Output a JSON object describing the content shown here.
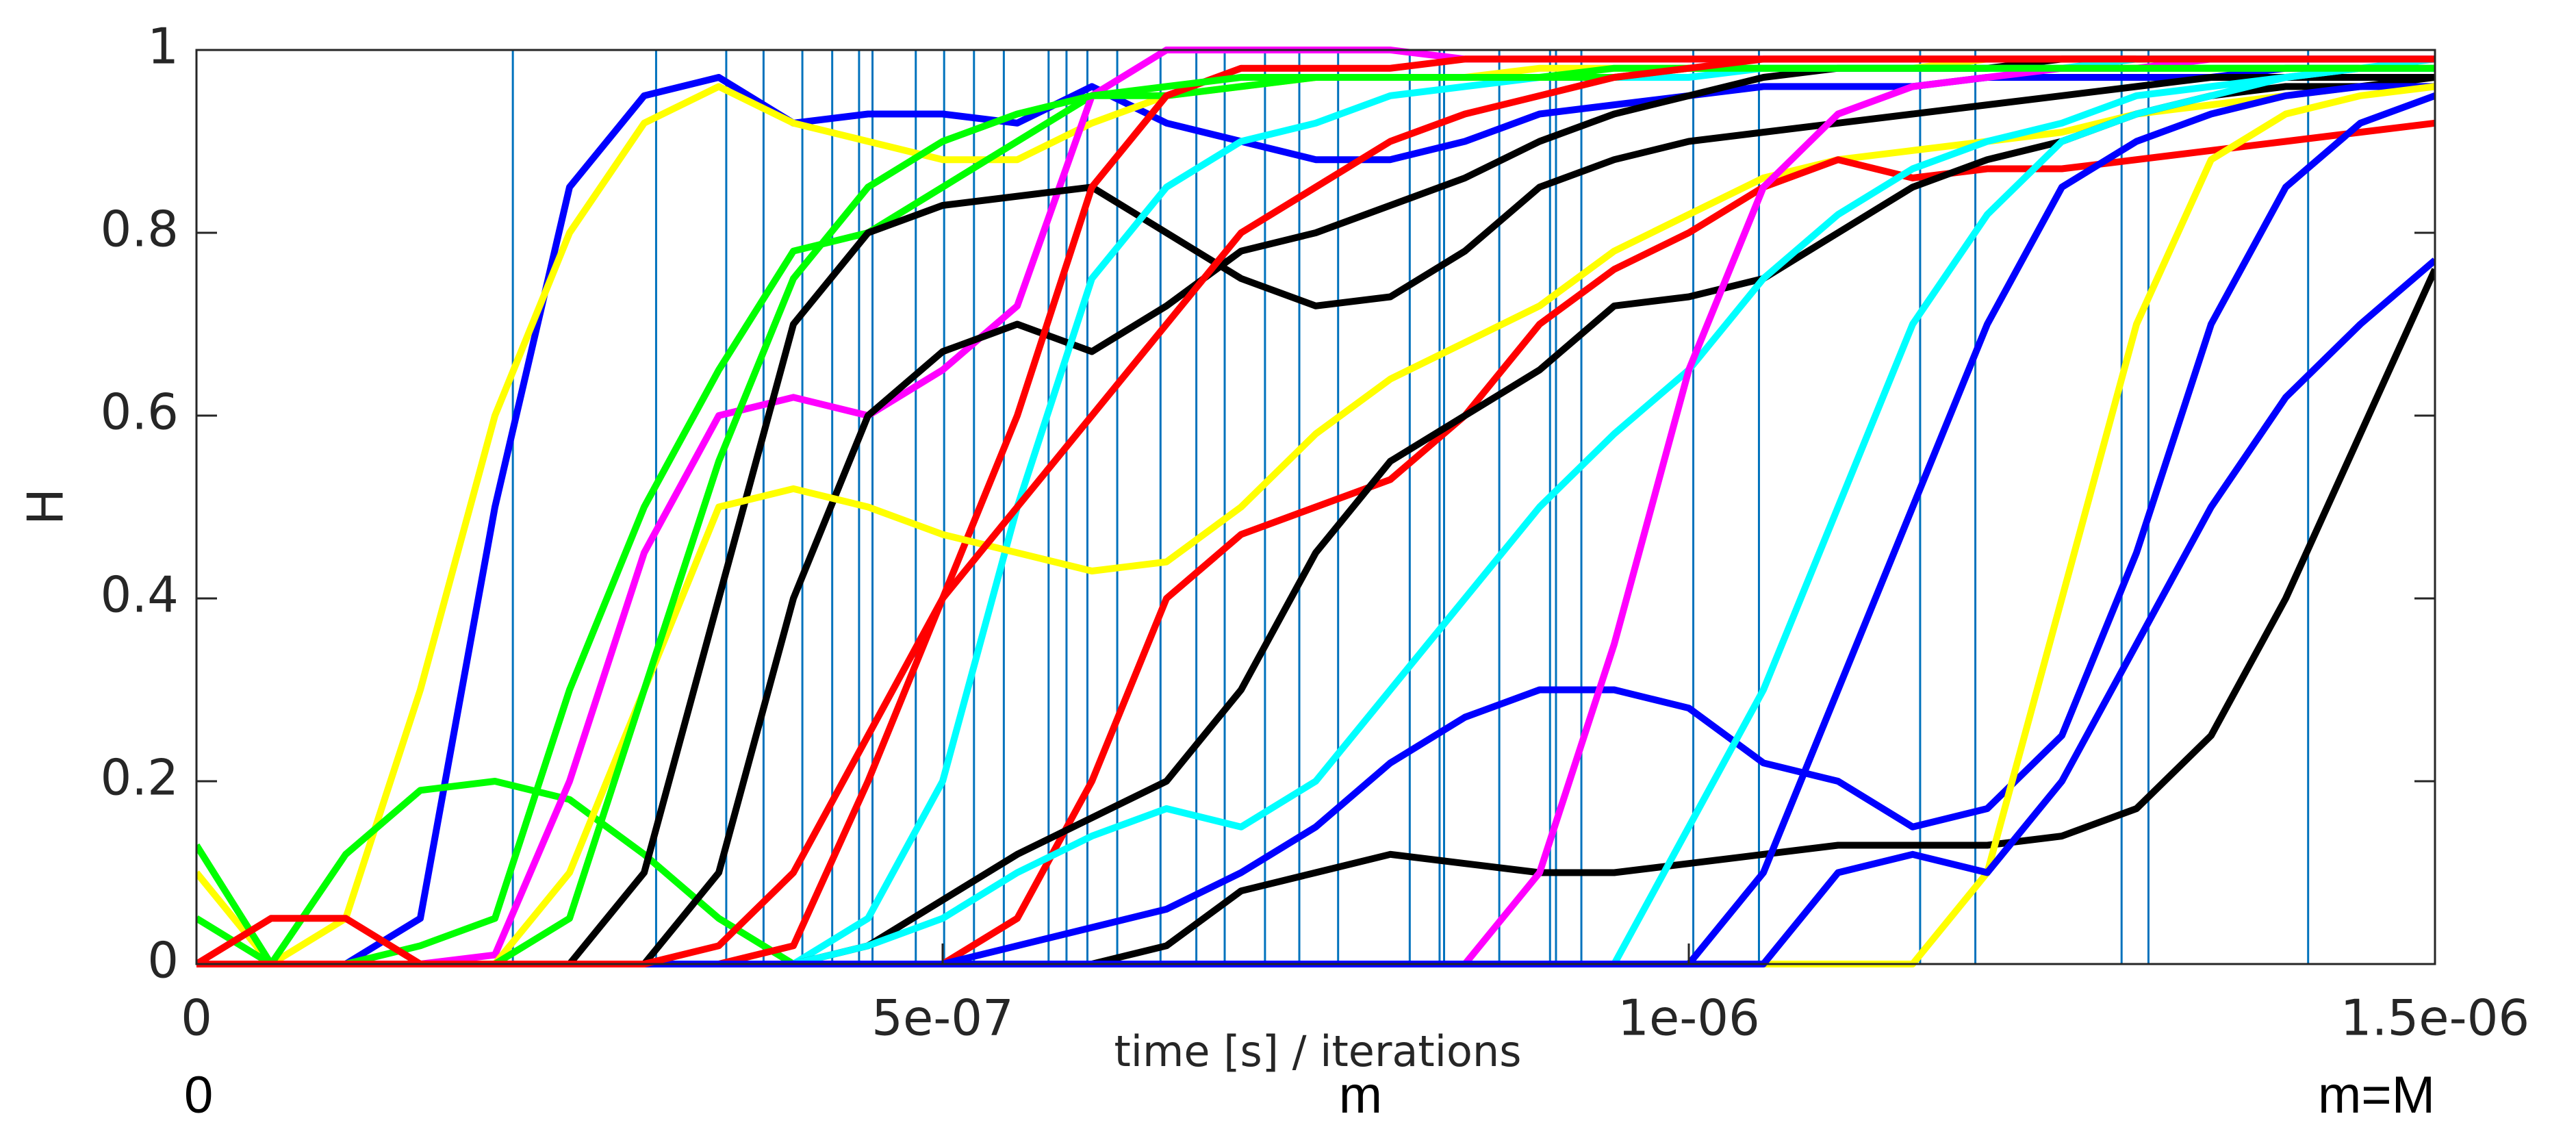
{
  "chart_data": {
    "type": "line",
    "xlabel": "time [s] / iterations",
    "ylabel": "H",
    "x": [
      0,
      5e-08,
      1e-07,
      1.5e-07,
      2e-07,
      2.5e-07,
      3e-07,
      3.5e-07,
      4e-07,
      4.5e-07,
      5e-07,
      5.5e-07,
      6e-07,
      6.5e-07,
      7e-07,
      7.5e-07,
      8e-07,
      8.5e-07,
      9e-07,
      9.5e-07,
      1e-06,
      1.05e-06,
      1.1e-06,
      1.15e-06,
      1.2e-06,
      1.25e-06,
      1.3e-06,
      1.35e-06,
      1.4e-06,
      1.45e-06,
      1.5e-06
    ],
    "xlim": [
      0,
      1.5e-06
    ],
    "xticks": [
      0,
      {
        "value": 5e-07,
        "label": "5e-07"
      },
      {
        "value": 1e-06,
        "label": "1e-06"
      },
      {
        "value": 1.5e-06,
        "label": "1.5e-06"
      }
    ],
    "x2ticks": [
      0,
      {
        "value": 7.8e-07,
        "label": "m"
      },
      {
        "value": 1.5e-06,
        "label": "m=M"
      }
    ],
    "ylim": [
      0,
      1
    ],
    "yticks": [
      0,
      0.2,
      0.4,
      0.6,
      0.8,
      1
    ],
    "vlines": [
      2.12e-07,
      3.08e-07,
      3.55e-07,
      3.8e-07,
      4.06e-07,
      4.26e-07,
      4.44e-07,
      4.53e-07,
      4.82e-07,
      5.01e-07,
      5.21e-07,
      5.41e-07,
      5.71e-07,
      5.83e-07,
      5.97e-07,
      6.17e-07,
      6.46e-07,
      6.7e-07,
      6.89e-07,
      7.16e-07,
      7.39e-07,
      7.65e-07,
      8.13e-07,
      8.33e-07,
      8.36e-07,
      8.73e-07,
      9.07e-07,
      9.11e-07,
      9.28e-07,
      1.003e-06,
      1.047e-06,
      1.155e-06,
      1.192e-06,
      1.29e-06,
      1.308e-06,
      1.415e-06
    ],
    "vline_color": "#0072bd",
    "series": [
      {
        "color": "#0000ff",
        "values": [
          0,
          0,
          0,
          0.05,
          0.5,
          0.85,
          0.95,
          0.97,
          0.92,
          0.93,
          0.93,
          0.92,
          0.96,
          0.92,
          0.9,
          0.88,
          0.88,
          0.9,
          0.93,
          0.94,
          0.95,
          0.96,
          0.96,
          0.96,
          0.97,
          0.97,
          0.97,
          0.97,
          0.98,
          0.98,
          0.98
        ]
      },
      {
        "color": "#ffff00",
        "values": [
          0.1,
          0,
          0.05,
          0.3,
          0.6,
          0.8,
          0.92,
          0.96,
          0.92,
          0.9,
          0.88,
          0.88,
          0.92,
          0.95,
          0.96,
          0.97,
          0.97,
          0.97,
          0.98,
          0.98,
          0.98,
          0.98,
          0.98,
          0.98,
          0.99,
          0.99,
          0.99,
          0.99,
          0.99,
          0.99,
          0.99
        ]
      },
      {
        "color": "#00ff00",
        "values": [
          0.13,
          0,
          0.12,
          0.19,
          0.2,
          0.18,
          0.12,
          0.05,
          0,
          null,
          null,
          null,
          null,
          null,
          null,
          null,
          null,
          null,
          null,
          null,
          null,
          null,
          null,
          null,
          null,
          null,
          null,
          null,
          null,
          null,
          null
        ]
      },
      {
        "color": "#00ff00",
        "values": [
          0.05,
          0,
          0,
          0.02,
          0.05,
          0.3,
          0.5,
          0.65,
          0.78,
          0.8,
          0.85,
          0.9,
          0.95,
          0.95,
          0.96,
          0.97,
          0.97,
          0.97,
          0.97,
          0.98,
          0.98,
          0.98,
          0.98,
          0.98,
          0.98,
          0.98,
          0.98,
          0.98,
          0.98,
          0.98,
          0.98
        ]
      },
      {
        "color": "#ff00ff",
        "values": [
          0,
          0,
          0,
          0,
          0.01,
          0.2,
          0.45,
          0.6,
          0.62,
          0.6,
          0.65,
          0.72,
          0.95,
          1,
          1,
          1,
          1,
          0.99,
          0.99,
          0.99,
          0.99,
          0.99,
          0.99,
          0.99,
          0.99,
          0.99,
          0.99,
          0.99,
          0.99,
          0.99,
          0.99
        ]
      },
      {
        "color": "#000000",
        "values": [
          0,
          0,
          0,
          0,
          0,
          0,
          0.1,
          0.4,
          0.7,
          0.8,
          0.83,
          0.84,
          0.85,
          0.8,
          0.75,
          0.72,
          0.73,
          0.78,
          0.85,
          0.88,
          0.9,
          0.91,
          0.92,
          0.93,
          0.94,
          0.95,
          0.96,
          0.97,
          0.97,
          0.97,
          0.97
        ]
      },
      {
        "color": "#000000",
        "values": [
          0,
          0,
          0,
          0,
          0,
          0,
          0,
          0.1,
          0.4,
          0.6,
          0.67,
          0.7,
          0.67,
          0.72,
          0.78,
          0.8,
          0.83,
          0.86,
          0.9,
          0.93,
          0.95,
          0.97,
          0.98,
          0.98,
          0.98,
          0.99,
          0.99,
          0.99,
          0.99,
          0.99,
          0.99
        ]
      },
      {
        "color": "#ff0000",
        "values": [
          0,
          0.05,
          0.05,
          0,
          0,
          0,
          0,
          0,
          0.02,
          0.2,
          0.4,
          0.6,
          0.85,
          0.95,
          0.98,
          0.98,
          0.98,
          0.99,
          0.99,
          0.99,
          0.99,
          0.99,
          0.99,
          0.99,
          0.99,
          0.99,
          0.99,
          0.99,
          0.99,
          0.99,
          0.99
        ]
      },
      {
        "color": "#00ffff",
        "values": [
          0,
          0,
          0,
          0,
          0,
          0,
          0,
          0,
          0,
          0.05,
          0.2,
          0.5,
          0.75,
          0.85,
          0.9,
          0.92,
          0.95,
          0.96,
          0.97,
          0.97,
          0.97,
          0.98,
          0.98,
          0.98,
          0.98,
          0.98,
          0.99,
          0.99,
          0.99,
          0.99,
          0.99
        ]
      },
      {
        "color": "#ffff00",
        "values": [
          0,
          0,
          0,
          0,
          0,
          0.1,
          0.3,
          0.5,
          0.52,
          0.5,
          0.47,
          0.45,
          0.43,
          0.44,
          0.5,
          0.58,
          0.64,
          0.68,
          0.72,
          0.78,
          0.82,
          0.86,
          0.88,
          0.89,
          0.9,
          0.91,
          0.93,
          0.94,
          0.95,
          0.96,
          0.96
        ]
      },
      {
        "color": "#ff0000",
        "values": [
          0,
          0,
          0,
          0,
          0,
          0,
          0,
          0,
          0,
          0,
          0,
          0.05,
          0.2,
          0.4,
          0.47,
          0.5,
          0.53,
          0.6,
          0.7,
          0.76,
          0.8,
          0.85,
          0.88,
          0.86,
          0.87,
          0.87,
          0.88,
          0.89,
          0.9,
          0.91,
          0.92
        ]
      },
      {
        "color": "#000000",
        "values": [
          0,
          0,
          0,
          0,
          0,
          0,
          0,
          0,
          0,
          0.02,
          0.07,
          0.12,
          0.16,
          0.2,
          0.3,
          0.45,
          0.55,
          0.6,
          0.65,
          0.72,
          0.73,
          0.75,
          0.8,
          0.85,
          0.88,
          0.9,
          0.93,
          0.95,
          0.96,
          0.96,
          0.97
        ]
      },
      {
        "color": "#00ffff",
        "values": [
          0,
          0,
          0,
          0,
          0,
          0,
          0,
          0,
          0,
          0.02,
          0.05,
          0.1,
          0.14,
          0.17,
          0.15,
          0.2,
          0.3,
          0.4,
          0.5,
          0.58,
          0.65,
          0.75,
          0.82,
          0.87,
          0.9,
          0.92,
          0.95,
          0.96,
          0.97,
          0.98,
          0.99
        ]
      },
      {
        "color": "#0000ff",
        "values": [
          0,
          0,
          0,
          0,
          0,
          0,
          0,
          0,
          0,
          0,
          0,
          0.02,
          0.04,
          0.06,
          0.1,
          0.15,
          0.22,
          0.27,
          0.3,
          0.3,
          0.28,
          0.22,
          0.2,
          0.15,
          0.17,
          0.25,
          0.45,
          0.7,
          0.85,
          0.92,
          0.95
        ]
      },
      {
        "color": "#000000",
        "values": [
          0,
          0,
          0,
          0,
          0,
          0,
          0,
          0,
          0,
          0,
          0,
          0,
          0,
          0.02,
          0.08,
          0.1,
          0.12,
          0.11,
          0.1,
          0.1,
          0.11,
          0.12,
          0.13,
          0.13,
          0.13,
          0.14,
          0.17,
          0.25,
          0.4,
          0.58,
          0.76
        ]
      },
      {
        "color": "#ff00ff",
        "values": [
          0,
          0,
          0,
          0,
          0,
          0,
          0,
          0,
          0,
          0,
          0,
          0,
          0,
          0,
          0,
          0,
          0,
          0,
          0.1,
          0.35,
          0.65,
          0.85,
          0.93,
          0.96,
          0.97,
          0.98,
          0.98,
          0.99,
          0.99,
          0.99,
          0.99
        ]
      },
      {
        "color": "#00ffff",
        "values": [
          0,
          0,
          0,
          0,
          0,
          0,
          0,
          0,
          0,
          0,
          0,
          0,
          0,
          0,
          0,
          0,
          0,
          0,
          0,
          0,
          0.15,
          0.3,
          0.5,
          0.7,
          0.82,
          0.9,
          0.93,
          0.95,
          0.97,
          0.98,
          0.98
        ]
      },
      {
        "color": "#0000ff",
        "values": [
          0,
          0,
          0,
          0,
          0,
          0,
          0,
          0,
          0,
          0,
          0,
          0,
          0,
          0,
          0,
          0,
          0,
          0,
          0,
          0,
          0,
          0.1,
          0.3,
          0.5,
          0.7,
          0.85,
          0.9,
          0.93,
          0.95,
          0.96,
          0.96
        ]
      },
      {
        "color": "#ffff00",
        "values": [
          0,
          0,
          0,
          0,
          0,
          0,
          0,
          0,
          0,
          0,
          0,
          0,
          0,
          0,
          0,
          0,
          0,
          0,
          0,
          0,
          0,
          0,
          0,
          0,
          0.1,
          0.4,
          0.7,
          0.88,
          0.93,
          0.95,
          0.96
        ]
      },
      {
        "color": "#0000ff",
        "values": [
          0,
          0,
          0,
          0,
          0,
          0,
          0,
          0,
          0,
          0,
          0,
          0,
          0,
          0,
          0,
          0,
          0,
          0,
          0,
          0,
          0,
          0,
          0.1,
          0.12,
          0.1,
          0.2,
          0.35,
          0.5,
          0.62,
          0.7,
          0.77
        ]
      },
      {
        "color": "#00ff00",
        "values": [
          0,
          0,
          0,
          0,
          0,
          0.05,
          0.3,
          0.55,
          0.75,
          0.85,
          0.9,
          0.93,
          0.95,
          0.96,
          0.97,
          0.97,
          0.97,
          0.97,
          0.97,
          0.97,
          0.98,
          0.98,
          0.98,
          0.98,
          0.98,
          0.98,
          0.98,
          0.98,
          0.98,
          0.98,
          0.98
        ]
      },
      {
        "color": "#ff0000",
        "values": [
          0,
          0,
          0,
          0,
          0,
          0,
          0,
          0.02,
          0.1,
          0.25,
          0.4,
          0.5,
          0.6,
          0.7,
          0.8,
          0.85,
          0.9,
          0.93,
          0.95,
          0.97,
          0.98,
          0.99,
          0.99,
          0.99,
          0.99,
          0.99,
          0.99,
          0.99,
          0.99,
          0.99,
          0.99
        ]
      }
    ]
  }
}
